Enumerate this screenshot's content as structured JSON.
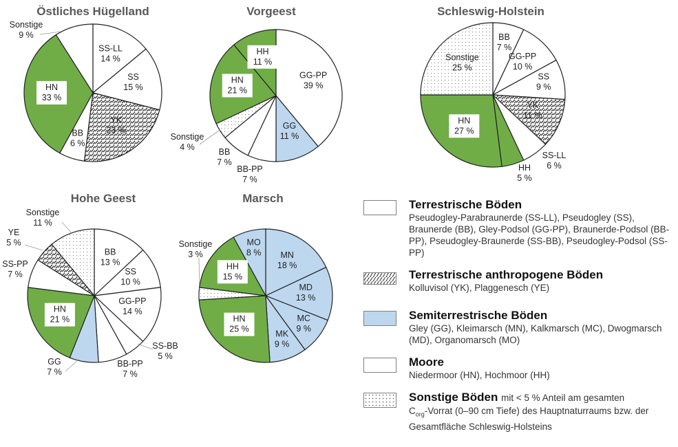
{
  "colors": {
    "terrestrisch": "#ffffff",
    "anthropogen": "hatch",
    "semiterrestrisch": "#bdd7ee",
    "moore": "#70ad47",
    "sonstige": "dots",
    "outline": "#222222",
    "title": "#595959"
  },
  "chart_data": [
    {
      "type": "pie",
      "title": "Östliches Hügelland",
      "start": "top",
      "direction": "clockwise",
      "slices": [
        {
          "code": "SS-LL",
          "value": 14,
          "label": "14 %",
          "category": "terrestrisch"
        },
        {
          "code": "SS",
          "value": 15,
          "label": "15 %",
          "category": "terrestrisch"
        },
        {
          "code": "YK",
          "value": 23,
          "label": "23 %",
          "category": "anthropogen"
        },
        {
          "code": "BB",
          "value": 6,
          "label": "6 %",
          "category": "terrestrisch"
        },
        {
          "code": "HN",
          "value": 33,
          "label": "33 %",
          "category": "moore"
        },
        {
          "code": "Sonstige",
          "value": 9,
          "label": "9 %",
          "category": "sonstige-plain"
        }
      ]
    },
    {
      "type": "pie",
      "title": "Vorgeest",
      "start": "top",
      "direction": "clockwise",
      "slices": [
        {
          "code": "GG-PP",
          "value": 39,
          "label": "39 %",
          "category": "terrestrisch"
        },
        {
          "code": "GG",
          "value": 11,
          "label": "11 %",
          "category": "semiterrestrisch"
        },
        {
          "code": "BB-PP",
          "value": 7,
          "label": "7 %",
          "category": "terrestrisch"
        },
        {
          "code": "BB",
          "value": 7,
          "label": "7 %",
          "category": "terrestrisch"
        },
        {
          "code": "Sonstige",
          "value": 4,
          "label": "4 %",
          "category": "sonstige"
        },
        {
          "code": "HN",
          "value": 21,
          "label": "21 %",
          "category": "moore"
        },
        {
          "code": "HH",
          "value": 11,
          "label": "11 %",
          "category": "moore"
        }
      ]
    },
    {
      "type": "pie",
      "title": "Schleswig-Holstein",
      "start": "top",
      "direction": "clockwise",
      "slices": [
        {
          "code": "BB",
          "value": 7,
          "label": "7 %",
          "category": "terrestrisch"
        },
        {
          "code": "GG-PP",
          "value": 10,
          "label": "10 %",
          "category": "terrestrisch"
        },
        {
          "code": "SS",
          "value": 9,
          "label": "9 %",
          "category": "terrestrisch"
        },
        {
          "code": "YK",
          "value": 11,
          "label": "11 %",
          "category": "anthropogen"
        },
        {
          "code": "SS-LL",
          "value": 6,
          "label": "6 %",
          "category": "terrestrisch"
        },
        {
          "code": "HH",
          "value": 5,
          "label": "5 %",
          "category": "moore"
        },
        {
          "code": "HN",
          "value": 27,
          "label": "27 %",
          "category": "moore"
        },
        {
          "code": "Sonstige",
          "value": 25,
          "label": "25 %",
          "category": "sonstige"
        }
      ]
    },
    {
      "type": "pie",
      "title": "Hohe Geest",
      "start": "top",
      "direction": "clockwise",
      "slices": [
        {
          "code": "BB",
          "value": 13,
          "label": "13 %",
          "category": "terrestrisch"
        },
        {
          "code": "SS",
          "value": 10,
          "label": "10 %",
          "category": "terrestrisch"
        },
        {
          "code": "GG-PP",
          "value": 14,
          "label": "14 %",
          "category": "terrestrisch"
        },
        {
          "code": "SS-BB",
          "value": 5,
          "label": "5 %",
          "category": "terrestrisch"
        },
        {
          "code": "BB-PP",
          "value": 7,
          "label": "7 %",
          "category": "terrestrisch"
        },
        {
          "code": "GG",
          "value": 7,
          "label": "7 %",
          "category": "semiterrestrisch"
        },
        {
          "code": "HN",
          "value": 21,
          "label": "21 %",
          "category": "moore"
        },
        {
          "code": "SS-PP",
          "value": 7,
          "label": "7 %",
          "category": "terrestrisch"
        },
        {
          "code": "YE",
          "value": 5,
          "label": "5 %",
          "category": "anthropogen"
        },
        {
          "code": "Sonstige",
          "value": 11,
          "label": "11 %",
          "category": "sonstige"
        }
      ]
    },
    {
      "type": "pie",
      "title": "Marsch",
      "start": "top",
      "direction": "clockwise",
      "slices": [
        {
          "code": "MN",
          "value": 18,
          "label": "18 %",
          "category": "semiterrestrisch"
        },
        {
          "code": "MD",
          "value": 13,
          "label": "13 %",
          "category": "semiterrestrisch"
        },
        {
          "code": "MC",
          "value": 9,
          "label": "9 %",
          "category": "semiterrestrisch"
        },
        {
          "code": "MK",
          "value": 9,
          "label": "9 %",
          "category": "semiterrestrisch"
        },
        {
          "code": "HN",
          "value": 25,
          "label": "25 %",
          "category": "moore"
        },
        {
          "code": "Sonstige",
          "value": 3,
          "label": "3 %",
          "category": "sonstige"
        },
        {
          "code": "HH",
          "value": 15,
          "label": "15 %",
          "category": "moore"
        },
        {
          "code": "MO",
          "value": 8,
          "label": "8 %",
          "category": "semiterrestrisch"
        }
      ]
    }
  ],
  "legend": {
    "items": [
      {
        "heading": "Terrestrische Böden",
        "swatch": "terrestrisch",
        "desc": "Pseudogley-Parabraunerde (SS-LL), Pseudogley (SS), Braunerde (BB), Gley-Podsol (GG-PP), Braunerde-Podsol (BB-PP), Pseudogley-Braunerde (SS-BB), Pseudogley-Podsol (SS-PP)"
      },
      {
        "heading": "Terrestrische anthropogene Böden",
        "swatch": "anthropogen",
        "desc": "Kolluvisol (YK), Plaggenesch (YE)"
      },
      {
        "heading": "Semiterrestrische Böden",
        "swatch": "semiterrestrisch",
        "desc": "Gley (GG), Kleimarsch (MN), Kalkmarsch (MC), Dwogmarsch (MD), Organomarsch (MO)"
      },
      {
        "heading": "Moore",
        "swatch": "moore",
        "desc": "Niedermoor (HN), Hochmoor (HH)"
      },
      {
        "heading": "Sonstige Böden",
        "swatch": "sonstige",
        "heading_suffix": "mit < 5 % Anteil am gesamten",
        "desc_c": "C",
        "desc_sub": "org",
        "desc": "-Vorrat (0–90 cm Tiefe) des Hauptnaturraums bzw. der Gesamtfläche Schleswig-Holsteins"
      }
    ]
  }
}
